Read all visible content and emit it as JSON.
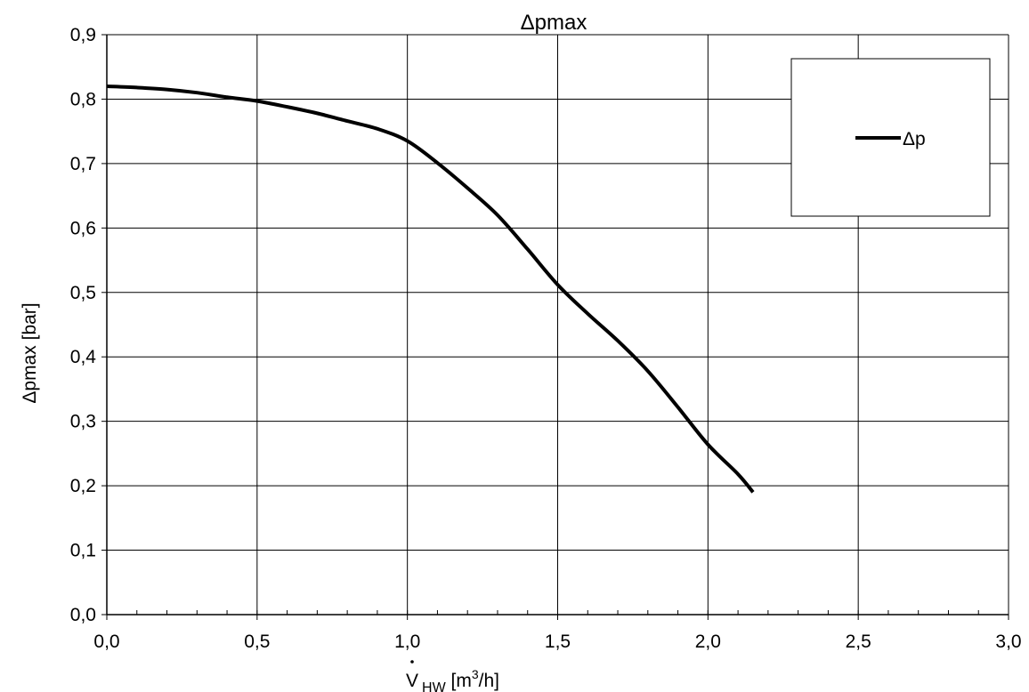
{
  "chart_data": {
    "type": "line",
    "title": "Δpmax",
    "xlabel": {
      "symbol": "V",
      "subscript": "HW",
      "unit_before": " [m",
      "unit_sup": "3",
      "unit_after": "/h]"
    },
    "ylabel": "Δpmax [bar]",
    "xlim": [
      0,
      3
    ],
    "ylim": [
      0,
      0.9
    ],
    "x_ticks": [
      0,
      0.5,
      1.0,
      1.5,
      2.0,
      2.5,
      3.0
    ],
    "x_tick_labels": [
      "0,0",
      "0,5",
      "1,0",
      "1,5",
      "2,0",
      "2,5",
      "3,0"
    ],
    "y_ticks": [
      0,
      0.1,
      0.2,
      0.3,
      0.4,
      0.5,
      0.6,
      0.7,
      0.8,
      0.9
    ],
    "y_tick_labels": [
      "0,0",
      "0,1",
      "0,2",
      "0,3",
      "0,4",
      "0,5",
      "0,6",
      "0,7",
      "0,8",
      "0,9"
    ],
    "x_minor_step": 0.1,
    "grid": true,
    "legend_position": "top-right",
    "series": [
      {
        "name": "Δp",
        "color": "#000000",
        "x": [
          0.0,
          0.1,
          0.2,
          0.3,
          0.4,
          0.5,
          0.6,
          0.7,
          0.8,
          0.9,
          1.0,
          1.1,
          1.2,
          1.3,
          1.4,
          1.5,
          1.6,
          1.7,
          1.8,
          1.9,
          2.0,
          2.1,
          2.15
        ],
        "y": [
          0.82,
          0.818,
          0.815,
          0.81,
          0.803,
          0.797,
          0.788,
          0.778,
          0.766,
          0.754,
          0.735,
          0.701,
          0.662,
          0.62,
          0.567,
          0.512,
          0.467,
          0.425,
          0.378,
          0.322,
          0.264,
          0.218,
          0.19
        ]
      }
    ]
  }
}
